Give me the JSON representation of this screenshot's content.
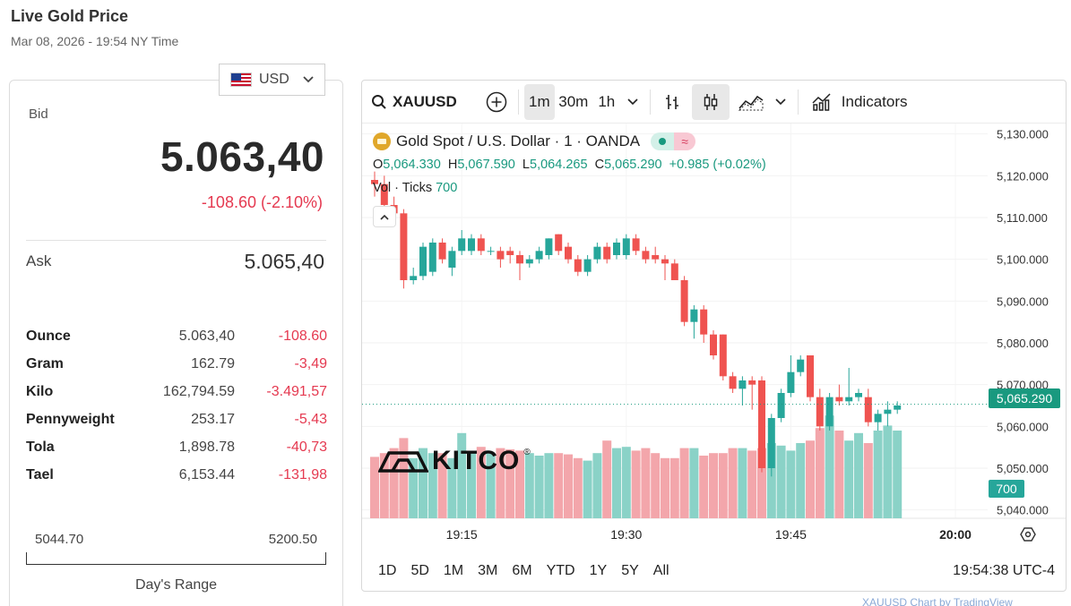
{
  "page": {
    "title": "Live Gold Price",
    "datetime": "Mar 08, 2026 - 19:54 NY Time"
  },
  "currency": {
    "selected": "USD"
  },
  "quote": {
    "bid_label": "Bid",
    "bid_value": "5.063,40",
    "bid_change": "-108.60 (-2.10%)",
    "ask_label": "Ask",
    "ask_value": "5.065,40"
  },
  "units": [
    {
      "name": "Ounce",
      "price": "5.063,40",
      "change": "-108.60"
    },
    {
      "name": "Gram",
      "price": "162.79",
      "change": "-3,49"
    },
    {
      "name": "Kilo",
      "price": "162,794.59",
      "change": "-3.491,57"
    },
    {
      "name": "Pennyweight",
      "price": "253.17",
      "change": "-5,43"
    },
    {
      "name": "Tola",
      "price": "1,898.78",
      "change": "-40,73"
    },
    {
      "name": "Tael",
      "price": "6,153.44",
      "change": "-131,98"
    }
  ],
  "day_range": {
    "low": "5044.70",
    "high": "5200.50",
    "label": "Day's Range"
  },
  "chart_toolbar": {
    "symbol": "XAUUSD",
    "intervals": [
      "1m",
      "30m",
      "1h"
    ],
    "active_interval": "1m",
    "indicators_label": "Indicators"
  },
  "chart_legend": {
    "title": "Gold Spot / U.S. Dollar · 1 · OANDA",
    "o_label": "O",
    "o": "5,064.330",
    "h_label": "H",
    "h": "5,067.590",
    "l_label": "L",
    "l": "5,064.265",
    "c_label": "C",
    "c": "5,065.290",
    "change": "+0.985 (+0.02%)",
    "vol_label": "Vol · Ticks",
    "vol_value": "700"
  },
  "chart_data": {
    "type": "candlestick",
    "y_ticks": [
      "5,130.000",
      "5,120.000",
      "5,110.000",
      "5,100.000",
      "5,090.000",
      "5,080.000",
      "5,070.000",
      "5,060.000",
      "5,050.000",
      "5,040.000"
    ],
    "ylim": [
      5038,
      5131
    ],
    "x_ticks": [
      "19:15",
      "19:30",
      "19:45",
      "20:00"
    ],
    "last_price": "5,065.290",
    "last_volume": "700",
    "up_color": "#26a69a",
    "down_color": "#ef5350",
    "candles": [
      {
        "o": 5119,
        "h": 5121,
        "l": 5115,
        "c": 5118
      },
      {
        "o": 5118,
        "h": 5120,
        "l": 5112,
        "c": 5113
      },
      {
        "o": 5113,
        "h": 5115,
        "l": 5110,
        "c": 5111
      },
      {
        "o": 5111,
        "h": 5112,
        "l": 5093,
        "c": 5095
      },
      {
        "o": 5095,
        "h": 5098,
        "l": 5094,
        "c": 5096
      },
      {
        "o": 5096,
        "h": 5104,
        "l": 5095,
        "c": 5103
      },
      {
        "o": 5097,
        "h": 5105,
        "l": 5096,
        "c": 5104
      },
      {
        "o": 5104,
        "h": 5105,
        "l": 5099,
        "c": 5100
      },
      {
        "o": 5098,
        "h": 5103,
        "l": 5096,
        "c": 5102
      },
      {
        "o": 5102,
        "h": 5107,
        "l": 5101,
        "c": 5105
      },
      {
        "o": 5102,
        "h": 5106,
        "l": 5101,
        "c": 5105
      },
      {
        "o": 5105,
        "h": 5106,
        "l": 5101,
        "c": 5102
      },
      {
        "o": 5102,
        "h": 5103,
        "l": 5101,
        "c": 5102
      },
      {
        "o": 5102,
        "h": 5103,
        "l": 5098,
        "c": 5100
      },
      {
        "o": 5102,
        "h": 5103,
        "l": 5099,
        "c": 5101
      },
      {
        "o": 5101,
        "h": 5102,
        "l": 5095,
        "c": 5099
      },
      {
        "o": 5099,
        "h": 5101,
        "l": 5098,
        "c": 5100
      },
      {
        "o": 5100,
        "h": 5103,
        "l": 5099,
        "c": 5102
      },
      {
        "o": 5101,
        "h": 5105,
        "l": 5100,
        "c": 5105
      },
      {
        "o": 5106,
        "h": 5106,
        "l": 5101,
        "c": 5102
      },
      {
        "o": 5103,
        "h": 5104,
        "l": 5099,
        "c": 5100
      },
      {
        "o": 5100,
        "h": 5101,
        "l": 5096,
        "c": 5097
      },
      {
        "o": 5097,
        "h": 5101,
        "l": 5096,
        "c": 5100
      },
      {
        "o": 5100,
        "h": 5104,
        "l": 5099,
        "c": 5103
      },
      {
        "o": 5103,
        "h": 5104,
        "l": 5099,
        "c": 5100
      },
      {
        "o": 5101,
        "h": 5105,
        "l": 5100,
        "c": 5104
      },
      {
        "o": 5101,
        "h": 5106,
        "l": 5100,
        "c": 5105
      },
      {
        "o": 5105,
        "h": 5106,
        "l": 5101,
        "c": 5102
      },
      {
        "o": 5102,
        "h": 5103,
        "l": 5099,
        "c": 5100
      },
      {
        "o": 5101,
        "h": 5103,
        "l": 5099,
        "c": 5100
      },
      {
        "o": 5100,
        "h": 5101,
        "l": 5095,
        "c": 5099
      },
      {
        "o": 5099,
        "h": 5100,
        "l": 5095,
        "c": 5095
      },
      {
        "o": 5095,
        "h": 5096,
        "l": 5084,
        "c": 5085
      },
      {
        "o": 5085,
        "h": 5089,
        "l": 5081,
        "c": 5088
      },
      {
        "o": 5088,
        "h": 5089,
        "l": 5080,
        "c": 5082
      },
      {
        "o": 5082,
        "h": 5083,
        "l": 5076,
        "c": 5077
      },
      {
        "o": 5082,
        "h": 5082,
        "l": 5071,
        "c": 5072
      },
      {
        "o": 5072,
        "h": 5073,
        "l": 5068,
        "c": 5069
      },
      {
        "o": 5069,
        "h": 5072,
        "l": 5065,
        "c": 5071
      },
      {
        "o": 5071,
        "h": 5072,
        "l": 5064,
        "c": 5070
      },
      {
        "o": 5071,
        "h": 5072,
        "l": 5049,
        "c": 5050
      },
      {
        "o": 5050,
        "h": 5063,
        "l": 5048,
        "c": 5062
      },
      {
        "o": 5062,
        "h": 5069,
        "l": 5061,
        "c": 5068
      },
      {
        "o": 5068,
        "h": 5077,
        "l": 5067,
        "c": 5073
      },
      {
        "o": 5073,
        "h": 5077,
        "l": 5072,
        "c": 5076
      },
      {
        "o": 5077,
        "h": 5077,
        "l": 5066,
        "c": 5067
      },
      {
        "o": 5067,
        "h": 5069,
        "l": 5059,
        "c": 5060
      },
      {
        "o": 5060,
        "h": 5068,
        "l": 5059,
        "c": 5067
      },
      {
        "o": 5067,
        "h": 5070,
        "l": 5065,
        "c": 5066
      },
      {
        "o": 5066,
        "h": 5074,
        "l": 5065,
        "c": 5067
      },
      {
        "o": 5067,
        "h": 5069,
        "l": 5066,
        "c": 5068
      },
      {
        "o": 5067,
        "h": 5069,
        "l": 5060,
        "c": 5061
      },
      {
        "o": 5061,
        "h": 5064,
        "l": 5059,
        "c": 5063
      },
      {
        "o": 5063,
        "h": 5066,
        "l": 5060,
        "c": 5064
      },
      {
        "o": 5064,
        "h": 5066,
        "l": 5063,
        "c": 5065
      }
    ],
    "volumes": [
      490,
      520,
      560,
      640,
      480,
      560,
      520,
      520,
      480,
      680,
      520,
      570,
      520,
      560,
      550,
      540,
      520,
      500,
      520,
      520,
      510,
      480,
      460,
      520,
      620,
      560,
      570,
      540,
      560,
      520,
      480,
      480,
      560,
      560,
      500,
      520,
      520,
      560,
      560,
      540,
      560,
      600,
      580,
      540,
      600,
      620,
      720,
      820,
      700,
      620,
      680,
      600,
      700,
      740,
      700
    ]
  },
  "chart_range_buttons": [
    "1D",
    "5D",
    "1M",
    "3M",
    "6M",
    "YTD",
    "1Y",
    "5Y",
    "All"
  ],
  "chart_clock": "19:54:38 UTC-4",
  "footer": {
    "link_text": "XAUUSD Chart by TradingView"
  }
}
